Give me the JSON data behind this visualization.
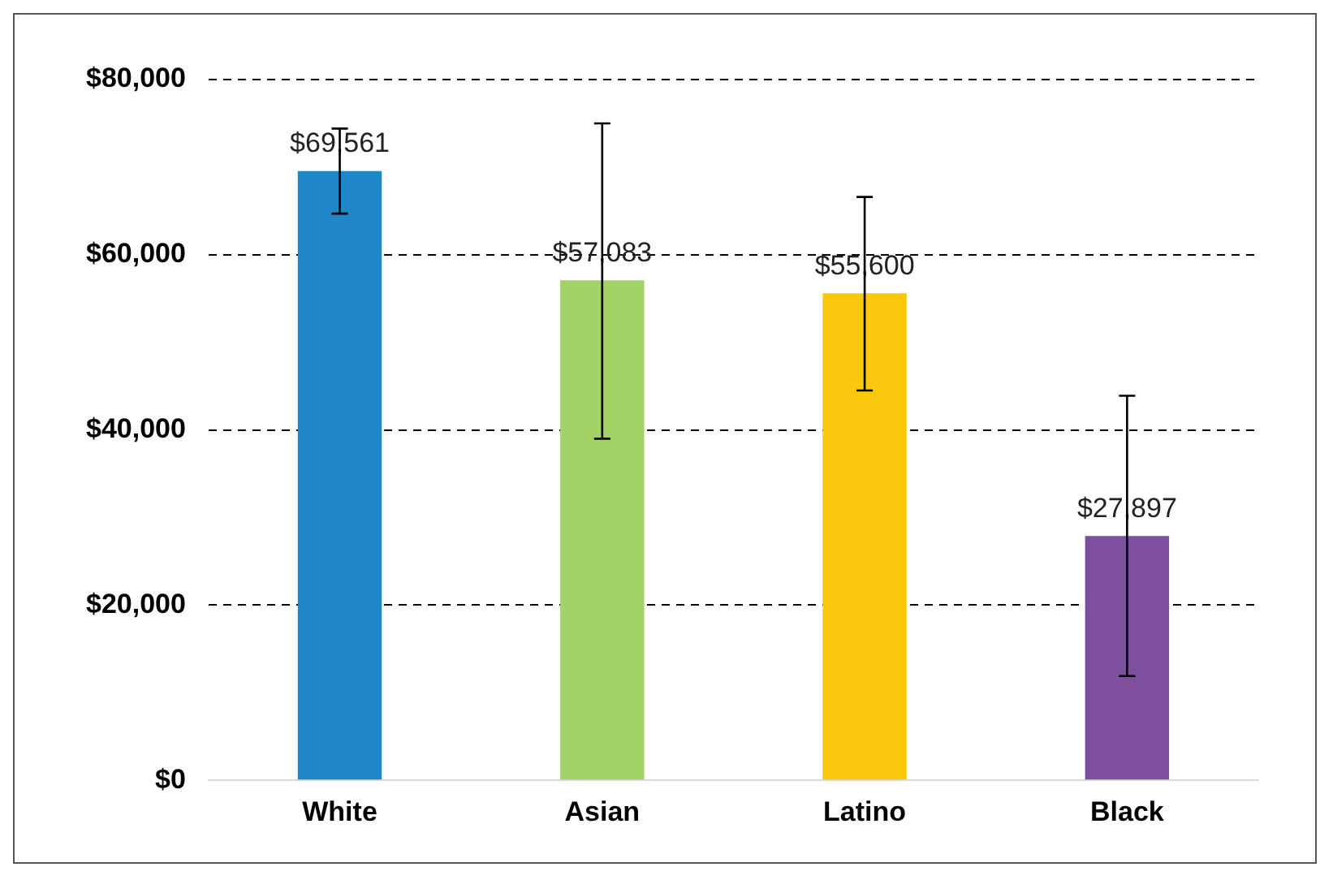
{
  "chart_data": {
    "type": "bar",
    "categories": [
      "White",
      "Asian",
      "Latino",
      "Black"
    ],
    "values": [
      69561,
      57083,
      55600,
      27897
    ],
    "colors": [
      "#1f86c8",
      "#a3d366",
      "#fcc80e",
      "#7d4f9e"
    ],
    "errors": [
      [
        64700,
        74400
      ],
      [
        39000,
        75000
      ],
      [
        44500,
        66600
      ],
      [
        11900,
        43900
      ]
    ],
    "value_labels": [
      "$69,561",
      "$57,083",
      "$55,600",
      "$27,897"
    ],
    "ylim": [
      0,
      80000
    ],
    "yticks": [
      {
        "value": 0,
        "label": "$0"
      },
      {
        "value": 20000,
        "label": "$20,000"
      },
      {
        "value": 40000,
        "label": "$40,000"
      },
      {
        "value": 60000,
        "label": "$60,000"
      },
      {
        "value": 80000,
        "label": "$80,000"
      }
    ],
    "grid": "y",
    "legend": false
  }
}
